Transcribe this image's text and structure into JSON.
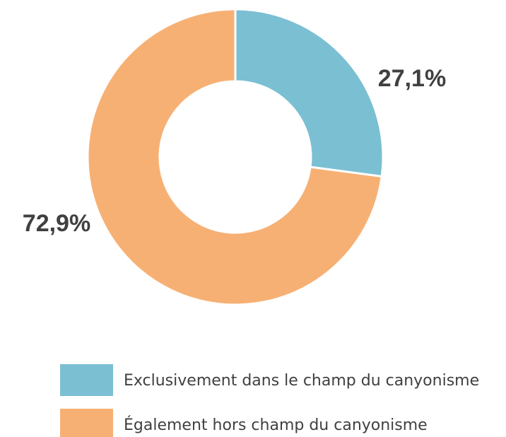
{
  "chart_data": {
    "type": "pie",
    "categories": [
      "Exclusivement dans le champ du canyonisme",
      "Également hors champ du canyonisme"
    ],
    "values": [
      27.1,
      72.9
    ],
    "value_labels": [
      "27,1%",
      "72,9%"
    ],
    "colors": [
      "#7bbfd3",
      "#f7b074"
    ],
    "donut": true
  }
}
